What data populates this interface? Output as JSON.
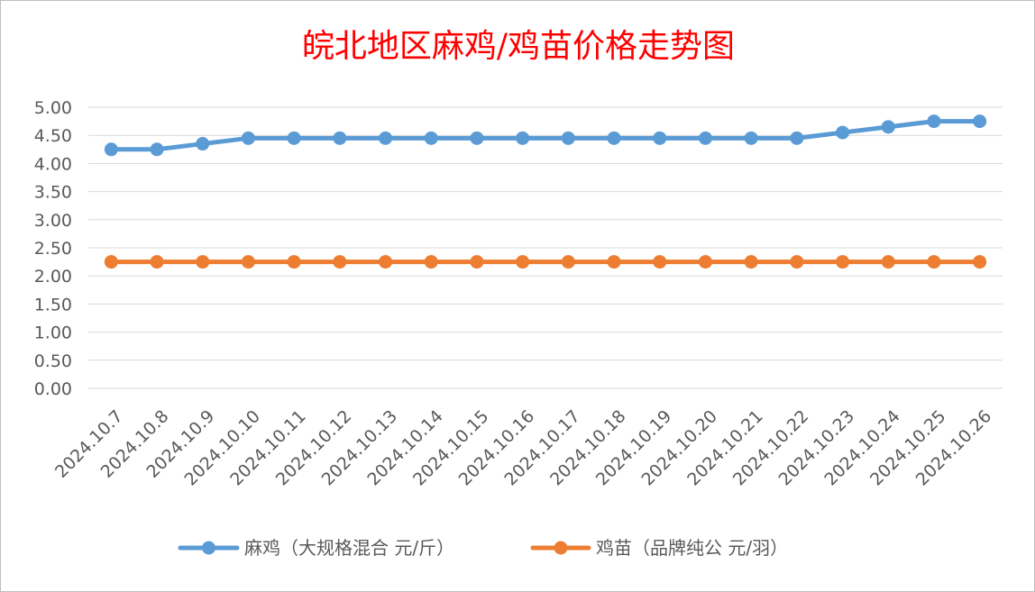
{
  "chart_data": {
    "type": "line",
    "title": "皖北地区麻鸡/鸡苗价格走势图",
    "categories": [
      "2024.10.7",
      "2024.10.8",
      "2024.10.9",
      "2024.10.10",
      "2024.10.11",
      "2024.10.12",
      "2024.10.13",
      "2024.10.14",
      "2024.10.15",
      "2024.10.16",
      "2024.10.17",
      "2024.10.18",
      "2024.10.19",
      "2024.10.20",
      "2024.10.21",
      "2024.10.22",
      "2024.10.23",
      "2024.10.24",
      "2024.10.25",
      "2024.10.26"
    ],
    "series": [
      {
        "name": "麻鸡（大规格混合 元/斤）",
        "color": "#5b9bd5",
        "values": [
          4.25,
          4.25,
          4.35,
          4.45,
          4.45,
          4.45,
          4.45,
          4.45,
          4.45,
          4.45,
          4.45,
          4.45,
          4.45,
          4.45,
          4.45,
          4.45,
          4.55,
          4.65,
          4.75,
          4.75
        ]
      },
      {
        "name": "鸡苗（品牌纯公 元/羽）",
        "color": "#ed7d31",
        "values": [
          2.25,
          2.25,
          2.25,
          2.25,
          2.25,
          2.25,
          2.25,
          2.25,
          2.25,
          2.25,
          2.25,
          2.25,
          2.25,
          2.25,
          2.25,
          2.25,
          2.25,
          2.25,
          2.25,
          2.25
        ]
      }
    ],
    "yticks": [
      "0.00",
      "0.50",
      "1.00",
      "1.50",
      "2.00",
      "2.50",
      "3.00",
      "3.50",
      "4.00",
      "4.50",
      "5.00"
    ],
    "ylim": [
      0,
      5
    ],
    "grid": true,
    "legend_position": "bottom"
  }
}
